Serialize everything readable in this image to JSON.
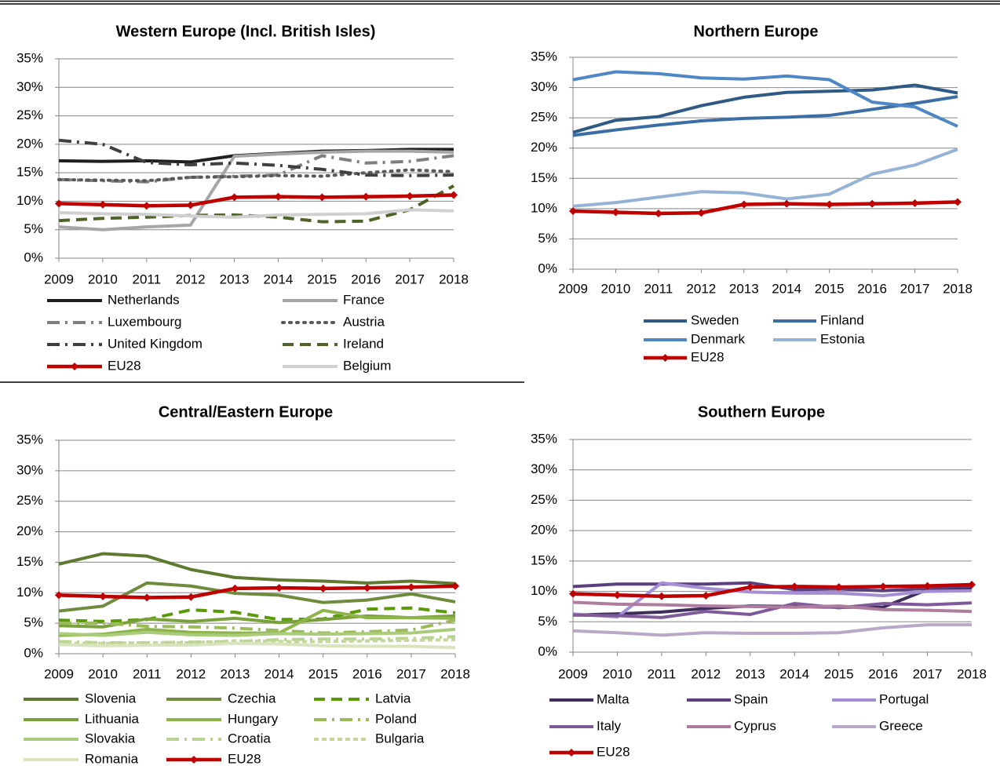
{
  "chart_data": [
    {
      "type": "line",
      "title": "Western Europe (Incl. British Isles)",
      "categories": [
        "2009",
        "2010",
        "2011",
        "2012",
        "2013",
        "2014",
        "2015",
        "2016",
        "2017",
        "2018"
      ],
      "ylim": [
        0,
        35
      ],
      "yticks": [
        {
          "value": 0,
          "label": "0%"
        },
        {
          "value": 5,
          "label": "5%"
        },
        {
          "value": 10,
          "label": "10%"
        },
        {
          "value": 15,
          "label": "15%"
        },
        {
          "value": 20,
          "label": "20%"
        },
        {
          "value": 25,
          "label": "25%"
        },
        {
          "value": 30,
          "label": "30%"
        },
        {
          "value": 35,
          "label": "35%"
        }
      ],
      "grid": true,
      "series": [
        {
          "name": "Netherlands",
          "color": "#1f1f1f",
          "dash": "solid",
          "values": [
            17.1,
            17.0,
            17.1,
            16.9,
            18.0,
            18.4,
            18.8,
            18.9,
            19.1,
            19.1
          ]
        },
        {
          "name": "France",
          "color": "#a6a6a6",
          "dash": "solid",
          "values": [
            5.5,
            5.0,
            5.5,
            5.8,
            17.9,
            18.3,
            18.6,
            18.8,
            18.8,
            18.6
          ]
        },
        {
          "name": "Luxembourg",
          "color": "#7f7f7f",
          "dash": "dashdot",
          "values": [
            13.8,
            13.6,
            13.4,
            14.2,
            14.4,
            14.6,
            18.0,
            16.7,
            17.0,
            18.0
          ]
        },
        {
          "name": "Austria",
          "color": "#595959",
          "dash": "dot",
          "values": [
            13.8,
            13.7,
            13.6,
            14.2,
            14.3,
            14.5,
            14.4,
            15.0,
            15.5,
            15.2
          ]
        },
        {
          "name": "United Kingdom",
          "color": "#404040",
          "dash": "dashdot",
          "values": [
            20.7,
            20.0,
            16.8,
            16.4,
            16.7,
            16.3,
            15.6,
            14.6,
            14.5,
            14.6
          ]
        },
        {
          "name": "Ireland",
          "color": "#4f6228",
          "dash": "dash",
          "values": [
            6.6,
            7.0,
            7.2,
            7.5,
            7.6,
            7.2,
            6.4,
            6.5,
            8.5,
            12.7
          ]
        },
        {
          "name": "EU28",
          "color": "#c00000",
          "dash": "solid",
          "marker": "diamond",
          "values": [
            9.6,
            9.4,
            9.2,
            9.3,
            10.7,
            10.8,
            10.7,
            10.8,
            10.9,
            11.1
          ]
        },
        {
          "name": "Belgium",
          "color": "#d0d0d0",
          "dash": "solid",
          "values": [
            8.0,
            7.8,
            7.7,
            7.4,
            7.2,
            7.6,
            7.7,
            7.8,
            8.5,
            8.3
          ]
        }
      ]
    },
    {
      "type": "line",
      "title": "Northern Europe",
      "categories": [
        "2009",
        "2010",
        "2011",
        "2012",
        "2013",
        "2014",
        "2015",
        "2016",
        "2017",
        "2018"
      ],
      "ylim": [
        0,
        35
      ],
      "yticks": [
        {
          "value": 0,
          "label": "0%"
        },
        {
          "value": 5,
          "label": "5%"
        },
        {
          "value": 10,
          "label": "10%"
        },
        {
          "value": 15,
          "label": "15%"
        },
        {
          "value": 20,
          "label": "20%"
        },
        {
          "value": 25,
          "label": "25%"
        },
        {
          "value": 30,
          "label": "30%"
        },
        {
          "value": 35,
          "label": "35%"
        }
      ],
      "grid": true,
      "series": [
        {
          "name": "Sweden",
          "color": "#2f5a86",
          "dash": "solid",
          "values": [
            22.6,
            24.6,
            25.2,
            27.0,
            28.4,
            29.2,
            29.4,
            29.6,
            30.4,
            29.1
          ]
        },
        {
          "name": "Finland",
          "color": "#3a6ea5",
          "dash": "solid",
          "values": [
            22.1,
            23.0,
            23.8,
            24.5,
            24.9,
            25.1,
            25.4,
            26.4,
            27.4,
            28.5
          ]
        },
        {
          "name": "Denmark",
          "color": "#4f86c6",
          "dash": "solid",
          "values": [
            31.3,
            32.6,
            32.3,
            31.6,
            31.4,
            31.9,
            31.3,
            27.6,
            26.8,
            23.6
          ]
        },
        {
          "name": "Estonia",
          "color": "#95b3d7",
          "dash": "solid",
          "values": [
            10.4,
            11.0,
            11.9,
            12.8,
            12.6,
            11.6,
            12.4,
            15.7,
            17.2,
            19.8
          ]
        },
        {
          "name": "EU28",
          "color": "#c00000",
          "dash": "solid",
          "marker": "diamond",
          "values": [
            9.6,
            9.4,
            9.2,
            9.3,
            10.7,
            10.8,
            10.7,
            10.8,
            10.9,
            11.1
          ]
        }
      ]
    },
    {
      "type": "line",
      "title": "Central/Eastern Europe",
      "categories": [
        "2009",
        "2010",
        "2011",
        "2012",
        "2013",
        "2014",
        "2015",
        "2016",
        "2017",
        "2018"
      ],
      "ylim": [
        0,
        35
      ],
      "yticks": [
        {
          "value": 0,
          "label": "0%"
        },
        {
          "value": 5,
          "label": "5%"
        },
        {
          "value": 10,
          "label": "10%"
        },
        {
          "value": 15,
          "label": "15%"
        },
        {
          "value": 20,
          "label": "20%"
        },
        {
          "value": 25,
          "label": "25%"
        },
        {
          "value": 30,
          "label": "30%"
        },
        {
          "value": 35,
          "label": "35%"
        }
      ],
      "grid": true,
      "series": [
        {
          "name": "Slovenia",
          "color": "#5e7a2e",
          "dash": "solid",
          "values": [
            14.7,
            16.4,
            16.0,
            13.8,
            12.5,
            12.1,
            11.9,
            11.6,
            11.9,
            11.5
          ]
        },
        {
          "name": "Czechia",
          "color": "#6f8c3e",
          "dash": "solid",
          "values": [
            7.0,
            7.8,
            11.6,
            11.1,
            9.9,
            9.6,
            8.4,
            8.8,
            9.8,
            8.5
          ]
        },
        {
          "name": "Latvia",
          "color": "#5a9a08",
          "dash": "dash",
          "values": [
            5.5,
            5.3,
            5.6,
            7.2,
            6.8,
            5.6,
            5.7,
            7.3,
            7.5,
            6.7
          ]
        },
        {
          "name": "Lithuania",
          "color": "#7aa03c",
          "dash": "solid",
          "values": [
            4.6,
            4.4,
            5.7,
            5.3,
            5.8,
            5.1,
            5.6,
            6.2,
            5.9,
            6.2
          ]
        },
        {
          "name": "Hungary",
          "color": "#8db54a",
          "dash": "solid",
          "values": [
            3.0,
            3.2,
            4.0,
            3.5,
            3.4,
            3.4,
            7.1,
            5.9,
            5.9,
            5.8
          ]
        },
        {
          "name": "Poland",
          "color": "#9bbb59",
          "dash": "dashdot",
          "values": [
            5.0,
            5.0,
            4.5,
            4.4,
            4.2,
            3.8,
            3.4,
            3.6,
            3.9,
            5.5
          ]
        },
        {
          "name": "Slovakia",
          "color": "#aacb7a",
          "dash": "solid",
          "values": [
            3.3,
            3.0,
            3.5,
            3.1,
            3.0,
            3.3,
            3.2,
            3.3,
            3.4,
            4.0
          ]
        },
        {
          "name": "Croatia",
          "color": "#b8d38f",
          "dash": "dashdot",
          "values": [
            2.0,
            1.8,
            1.8,
            1.9,
            2.0,
            2.3,
            2.4,
            2.4,
            2.5,
            2.8
          ]
        },
        {
          "name": "Bulgaria",
          "color": "#c4d79b",
          "dash": "finedash",
          "values": [
            1.7,
            1.7,
            1.8,
            1.8,
            2.1,
            2.0,
            2.0,
            2.1,
            2.2,
            2.3
          ]
        },
        {
          "name": "Romania",
          "color": "#d7e4bd",
          "dash": "solid",
          "values": [
            1.5,
            1.3,
            1.4,
            1.4,
            1.7,
            1.6,
            1.3,
            1.2,
            1.2,
            1.0
          ]
        },
        {
          "name": "EU28",
          "color": "#c00000",
          "dash": "solid",
          "marker": "diamond",
          "values": [
            9.6,
            9.4,
            9.2,
            9.3,
            10.7,
            10.8,
            10.7,
            10.8,
            10.9,
            11.1
          ]
        }
      ]
    },
    {
      "type": "line",
      "title": "Southern Europe",
      "categories": [
        "2009",
        "2010",
        "2011",
        "2012",
        "2013",
        "2014",
        "2015",
        "2016",
        "2017",
        "2018"
      ],
      "ylim": [
        0,
        35
      ],
      "yticks": [
        {
          "value": 0,
          "label": "0%"
        },
        {
          "value": 5,
          "label": "5%"
        },
        {
          "value": 10,
          "label": "10%"
        },
        {
          "value": 15,
          "label": "15%"
        },
        {
          "value": 20,
          "label": "20%"
        },
        {
          "value": 25,
          "label": "25%"
        },
        {
          "value": 30,
          "label": "30%"
        },
        {
          "value": 35,
          "label": "35%"
        }
      ],
      "grid": true,
      "series": [
        {
          "name": "Malta",
          "color": "#3f2d5b",
          "dash": "solid",
          "values": [
            6.1,
            6.3,
            6.6,
            7.2,
            7.6,
            7.5,
            7.4,
            7.4,
            10.3,
            10.5
          ]
        },
        {
          "name": "Spain",
          "color": "#5c3f7f",
          "dash": "solid",
          "values": [
            10.8,
            11.2,
            11.2,
            11.2,
            11.4,
            10.3,
            10.4,
            10.1,
            10.5,
            10.9
          ]
        },
        {
          "name": "Portugal",
          "color": "#a48fd6",
          "dash": "solid",
          "values": [
            6.3,
            5.8,
            11.4,
            10.5,
            9.9,
            9.7,
            9.7,
            9.3,
            10.0,
            10.1
          ]
        },
        {
          "name": "Italy",
          "color": "#7e5a9b",
          "dash": "solid",
          "values": [
            6.1,
            6.0,
            5.7,
            6.7,
            6.2,
            8.0,
            7.3,
            8.0,
            7.8,
            8.1
          ]
        },
        {
          "name": "Cyprus",
          "color": "#b07c9e",
          "dash": "solid",
          "values": [
            8.2,
            7.9,
            7.8,
            7.6,
            7.5,
            7.4,
            7.6,
            7.0,
            6.9,
            6.7
          ]
        },
        {
          "name": "Greece",
          "color": "#b9a9c9",
          "dash": "solid",
          "values": [
            3.5,
            3.2,
            2.8,
            3.2,
            3.1,
            3.1,
            3.2,
            4.0,
            4.5,
            4.5
          ]
        },
        {
          "name": "EU28",
          "color": "#c00000",
          "dash": "solid",
          "marker": "diamond",
          "values": [
            9.6,
            9.4,
            9.2,
            9.3,
            10.7,
            10.8,
            10.7,
            10.8,
            10.9,
            11.1
          ]
        }
      ]
    }
  ]
}
